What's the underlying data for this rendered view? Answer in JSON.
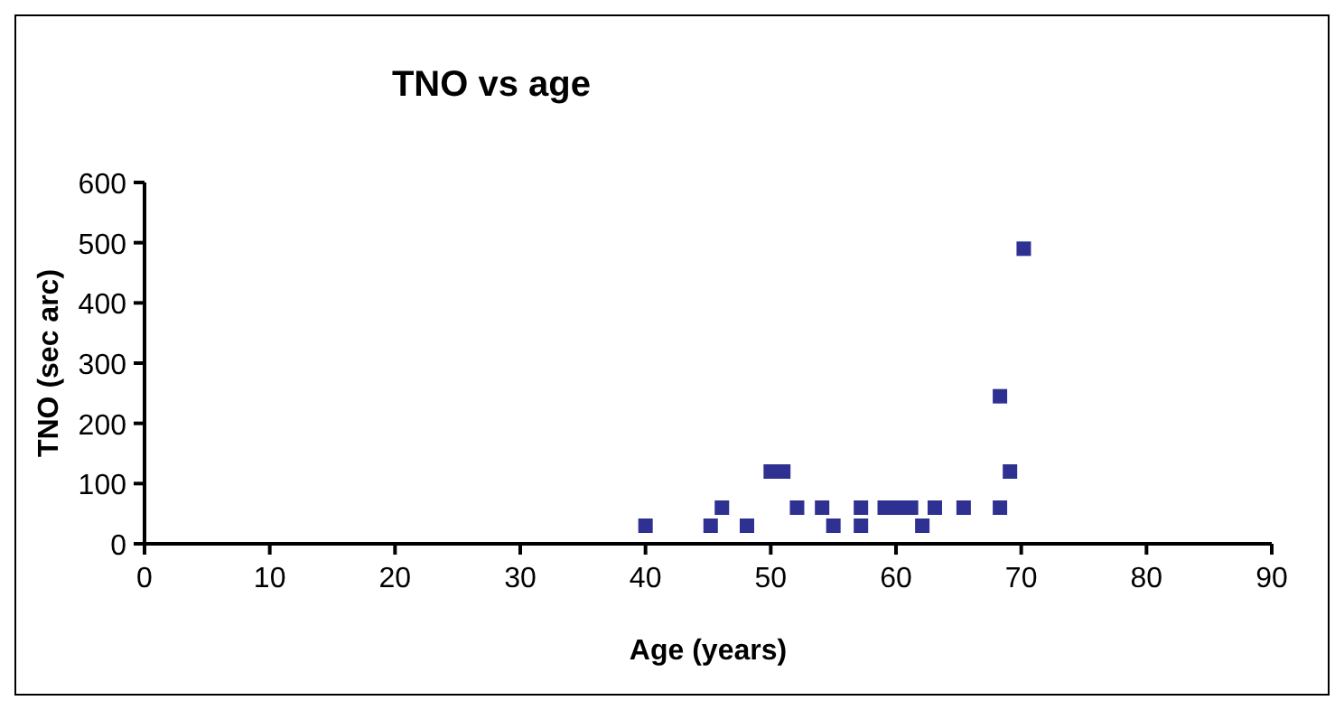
{
  "chart_data": {
    "type": "scatter",
    "title": "TNO vs age",
    "xlabel": "Age (years)",
    "ylabel": "TNO (sec arc)",
    "xlim": [
      0,
      90
    ],
    "xticks": [
      0,
      10,
      20,
      30,
      40,
      50,
      60,
      70,
      80,
      90
    ],
    "ylim": [
      0,
      600
    ],
    "yticks": [
      0,
      100,
      200,
      300,
      400,
      500,
      600
    ],
    "grid": false,
    "marker": "square",
    "series": [
      {
        "color": "#2e3192",
        "x": [
          40,
          45.2,
          46.1,
          48.1,
          50,
          51,
          52.1,
          54.1,
          55,
          57.2,
          57.2,
          59.1,
          60.2,
          61.2,
          62.1,
          63.1,
          65.4,
          68.3,
          68.3,
          69.1,
          70.2
        ],
        "values": [
          30,
          30,
          60,
          30,
          120,
          120,
          60,
          60,
          30,
          60,
          30,
          60,
          60,
          60,
          30,
          60,
          60,
          60,
          245,
          120,
          490
        ]
      }
    ]
  }
}
